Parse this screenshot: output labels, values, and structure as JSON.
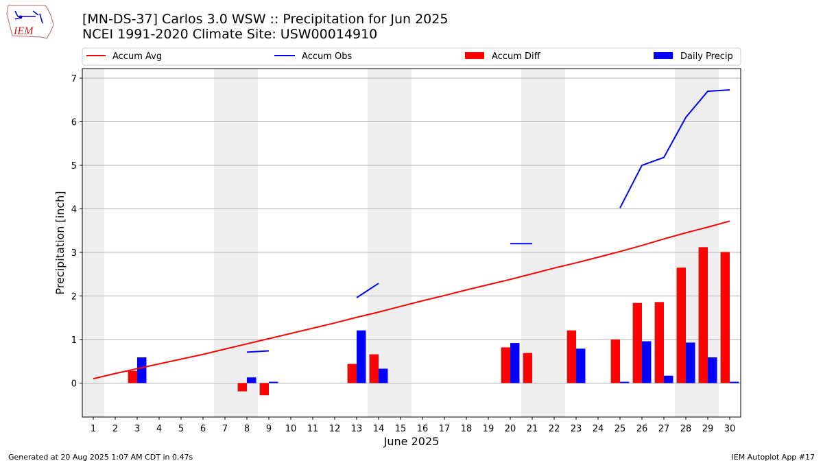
{
  "logo_text": "IEM",
  "title_line1": "[MN-DS-37] Carlos 3.0 WSW :: Precipitation for Jun 2025",
  "title_line2": "NCEI 1991-2020 Climate Site: USW00014910",
  "footer_left": "Generated at 20 Aug 2025 1:07 AM CDT in 0.47s",
  "footer_right": "IEM Autoplot App #17",
  "colors": {
    "avg": "#ff0000",
    "obs": "#0000ff",
    "diff": "#ff0000",
    "daily": "#0000ff",
    "weekend": "#eeeeee",
    "grid": "#b0b0b0"
  },
  "chart_data": {
    "type": "bar",
    "xlabel": "June 2025",
    "ylabel": "Precipitation [inch]",
    "days": [
      1,
      2,
      3,
      4,
      5,
      6,
      7,
      8,
      9,
      10,
      11,
      12,
      13,
      14,
      15,
      16,
      17,
      18,
      19,
      20,
      21,
      22,
      23,
      24,
      25,
      26,
      27,
      28,
      29,
      30
    ],
    "xlim": [
      0.5,
      30.5
    ],
    "ylim": [
      -0.78,
      7.22
    ],
    "yticks": [
      0,
      1,
      2,
      3,
      4,
      5,
      6,
      7
    ],
    "grid": true,
    "shaded_days": [
      1,
      7,
      8,
      14,
      15,
      21,
      22,
      28,
      29
    ],
    "legend": [
      "Accum Avg",
      "Accum Obs",
      "Accum Diff",
      "Daily Precip"
    ],
    "legend_position": "top",
    "series": [
      {
        "name": "Accum Avg",
        "kind": "line",
        "values": [
          0.1,
          0.22,
          0.33,
          0.44,
          0.55,
          0.66,
          0.78,
          0.9,
          1.02,
          1.14,
          1.26,
          1.38,
          1.51,
          1.63,
          1.76,
          1.89,
          2.01,
          2.14,
          2.26,
          2.38,
          2.51,
          2.64,
          2.76,
          2.89,
          3.02,
          3.16,
          3.31,
          3.45,
          3.58,
          3.72
        ]
      },
      {
        "name": "Accum Obs",
        "kind": "line",
        "values": [
          null,
          null,
          null,
          null,
          null,
          null,
          null,
          0.71,
          0.74,
          null,
          null,
          null,
          1.96,
          2.29,
          null,
          null,
          null,
          null,
          null,
          3.2,
          3.2,
          null,
          null,
          null,
          4.02,
          5.0,
          5.18,
          6.1,
          6.7,
          6.73
        ]
      },
      {
        "name": "Accum Diff",
        "kind": "bar",
        "values": [
          0,
          0,
          0.28,
          0,
          0,
          0,
          0,
          -0.19,
          -0.28,
          0,
          0,
          0,
          0.44,
          0.66,
          0,
          0,
          0,
          0,
          0,
          0.82,
          0.69,
          0,
          1.21,
          0,
          1.0,
          1.84,
          1.86,
          2.65,
          3.12,
          3.01
        ]
      },
      {
        "name": "Daily Precip",
        "kind": "bar",
        "values": [
          0,
          0,
          0.59,
          0,
          0,
          0,
          0,
          0.13,
          0.03,
          0,
          0,
          0,
          1.21,
          0.33,
          0,
          0,
          0,
          0,
          0,
          0.92,
          0,
          0,
          0.79,
          0,
          0.03,
          0.96,
          0.17,
          0.93,
          0.59,
          0.03
        ]
      }
    ]
  }
}
